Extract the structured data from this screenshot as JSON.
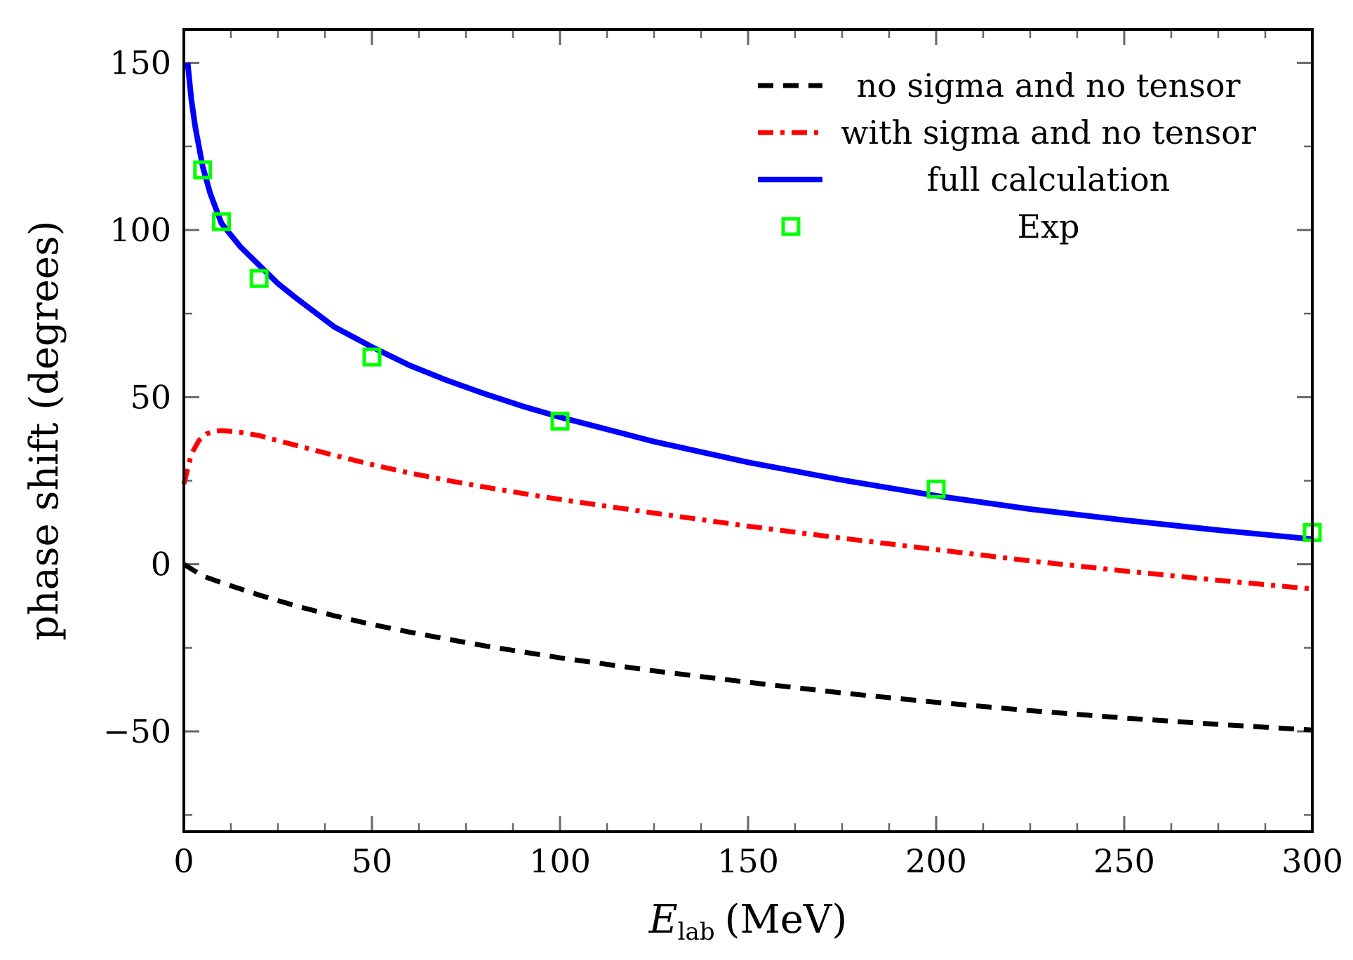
{
  "chart_data": {
    "type": "line",
    "xlabel_main": "E",
    "xlabel_sub": "lab",
    "xlabel_unit": "(MeV)",
    "ylabel": "phase shift (degrees)",
    "xlim": [
      0,
      300
    ],
    "ylim": [
      -80,
      160
    ],
    "x_ticks": [
      0,
      50,
      100,
      150,
      200,
      250,
      300
    ],
    "y_ticks": [
      -50,
      0,
      50,
      100,
      150
    ],
    "x_tick_labels": [
      "0",
      "50",
      "100",
      "150",
      "200",
      "250",
      "300"
    ],
    "y_tick_labels": [
      "−50",
      "0",
      "50",
      "100",
      "150"
    ],
    "grid": false,
    "legend_position": "top-right",
    "series": [
      {
        "name": "no sigma and no tensor",
        "style": "dashed",
        "color": "#000000",
        "x": [
          0,
          5,
          10,
          20,
          30,
          40,
          50,
          60,
          70,
          80,
          90,
          100,
          125,
          150,
          175,
          200,
          225,
          250,
          275,
          300
        ],
        "y": [
          0,
          -3.5,
          -5.5,
          -9.2,
          -12.5,
          -15.4,
          -18,
          -20.3,
          -22.4,
          -24.4,
          -26.2,
          -28,
          -31.9,
          -35.3,
          -38.5,
          -41.3,
          -43.8,
          -46.0,
          -47.9,
          -49.6
        ]
      },
      {
        "name": "with sigma and no tensor",
        "style": "dashdot",
        "color": "#ff0000",
        "x": [
          0,
          2,
          4,
          6,
          8,
          10,
          12,
          15,
          20,
          30,
          40,
          50,
          60,
          70,
          80,
          90,
          100,
          125,
          150,
          175,
          200,
          225,
          250,
          275,
          300
        ],
        "y": [
          24,
          33,
          37,
          39,
          39.8,
          40,
          39.8,
          39.5,
          38.5,
          35.5,
          32.6,
          29.8,
          27.3,
          25.1,
          23.1,
          21.2,
          19.4,
          15.3,
          11.4,
          7.8,
          4.4,
          1.0,
          -2.0,
          -4.8,
          -7.4
        ]
      },
      {
        "name": "full calculation",
        "style": "solid",
        "color": "#0000ff",
        "x": [
          1,
          2,
          3,
          5,
          7,
          10,
          15,
          20,
          25,
          30,
          40,
          50,
          60,
          70,
          80,
          90,
          100,
          125,
          150,
          175,
          200,
          225,
          250,
          275,
          300
        ],
        "y": [
          150,
          139,
          131,
          119,
          111,
          102,
          95,
          89.5,
          84,
          79.5,
          71,
          65,
          59.5,
          55,
          51,
          47.3,
          44,
          36.7,
          30.5,
          25.2,
          20.5,
          16.5,
          13.2,
          10.2,
          7.5
        ]
      },
      {
        "name": "Exp",
        "style": "markers",
        "color": "#00ff00",
        "x": [
          5,
          10,
          20,
          50,
          100,
          200,
          300
        ],
        "y": [
          118,
          102.5,
          85.5,
          62,
          42.8,
          22.5,
          9.5
        ]
      }
    ]
  }
}
